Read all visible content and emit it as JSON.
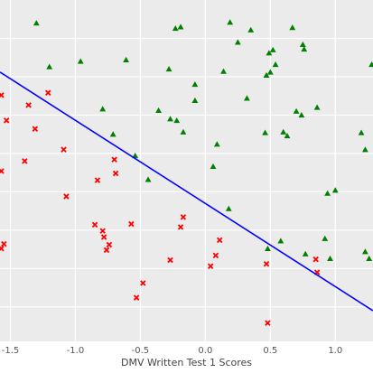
{
  "chart_data": {
    "type": "scatter",
    "title": "",
    "xlabel": "DMV Written Test 1 Scores",
    "ylabel": "",
    "xlim": [
      -1.58,
      1.29
    ],
    "ylim": [
      -2.45,
      2.0
    ],
    "x_ticks": [
      -1.5,
      -1.0,
      -0.5,
      0.0,
      0.5,
      1.0
    ],
    "x_tick_labels": [
      "-1.5",
      "-1.0",
      "-0.5",
      "0.0",
      "0.5",
      "1.0"
    ],
    "y_ticks": [
      -2.0,
      -1.5,
      -1.0,
      -0.5,
      0.0,
      0.5,
      1.0,
      1.5
    ],
    "y_tick_labels": [],
    "grid": true,
    "background_color": "#EBEBEB",
    "legend": "none",
    "series": [
      {
        "marker": "triangle",
        "color": "#008000",
        "points": [
          [
            -1.3,
            1.7
          ],
          [
            -1.2,
            1.13
          ],
          [
            -0.96,
            1.2
          ],
          [
            -0.61,
            1.22
          ],
          [
            -0.28,
            1.1
          ],
          [
            -0.23,
            1.63
          ],
          [
            -0.19,
            1.65
          ],
          [
            0.19,
            1.71
          ],
          [
            0.25,
            1.45
          ],
          [
            0.35,
            1.61
          ],
          [
            0.14,
            1.07
          ],
          [
            0.49,
            1.31
          ],
          [
            0.52,
            1.35
          ],
          [
            0.54,
            1.16
          ],
          [
            0.67,
            1.64
          ],
          [
            0.75,
            1.42
          ],
          [
            0.76,
            1.36
          ],
          [
            1.28,
            1.16
          ],
          [
            0.47,
            1.02
          ],
          [
            0.5,
            1.06
          ],
          [
            -0.08,
            0.9
          ],
          [
            -0.08,
            0.69
          ],
          [
            -0.36,
            0.56
          ],
          [
            -0.27,
            0.45
          ],
          [
            -0.22,
            0.43
          ],
          [
            -0.17,
            0.28
          ],
          [
            0.32,
            0.72
          ],
          [
            0.46,
            0.27
          ],
          [
            0.6,
            0.28
          ],
          [
            0.63,
            0.23
          ],
          [
            0.7,
            0.55
          ],
          [
            0.74,
            0.5
          ],
          [
            0.86,
            0.6
          ],
          [
            1.2,
            0.27
          ],
          [
            1.23,
            0.05
          ],
          [
            -0.79,
            0.58
          ],
          [
            -0.71,
            0.25
          ],
          [
            -0.54,
            -0.03
          ],
          [
            -0.44,
            -0.34
          ],
          [
            0.06,
            -0.17
          ],
          [
            0.09,
            0.12
          ],
          [
            0.18,
            -0.72
          ],
          [
            0.48,
            -1.24
          ],
          [
            0.58,
            -1.14
          ],
          [
            0.94,
            -0.52
          ],
          [
            1.0,
            -0.48
          ],
          [
            0.92,
            -1.11
          ],
          [
            0.96,
            -1.37
          ],
          [
            0.77,
            -1.31
          ],
          [
            1.23,
            -1.28
          ],
          [
            1.26,
            -1.37
          ]
        ]
      },
      {
        "marker": "x",
        "color": "#FF0000",
        "points": [
          [
            -1.57,
            0.76
          ],
          [
            -1.53,
            0.43
          ],
          [
            -1.57,
            -0.23
          ],
          [
            -1.55,
            -1.18
          ],
          [
            -1.36,
            0.63
          ],
          [
            -1.31,
            0.32
          ],
          [
            -1.21,
            0.79
          ],
          [
            -1.39,
            -0.1
          ],
          [
            -1.09,
            0.05
          ],
          [
            -1.07,
            -0.56
          ],
          [
            -0.83,
            -0.35
          ],
          [
            -0.7,
            -0.08
          ],
          [
            -0.69,
            -0.26
          ],
          [
            -0.85,
            -0.93
          ],
          [
            -0.79,
            -1.01
          ],
          [
            -0.78,
            -1.09
          ],
          [
            -0.76,
            -1.26
          ],
          [
            -0.74,
            -1.19
          ],
          [
            -0.57,
            -0.92
          ],
          [
            -0.48,
            -1.69
          ],
          [
            -0.53,
            -1.88
          ],
          [
            -0.27,
            -1.39
          ],
          [
            -0.19,
            -0.96
          ],
          [
            -0.17,
            -0.83
          ],
          [
            0.04,
            -1.47
          ],
          [
            0.08,
            -1.33
          ],
          [
            0.11,
            -1.13
          ],
          [
            0.47,
            -1.44
          ],
          [
            0.48,
            -2.21
          ],
          [
            0.85,
            -1.38
          ],
          [
            0.86,
            -1.55
          ],
          [
            -1.57,
            -1.24
          ]
        ]
      }
    ],
    "decision_boundary": {
      "color": "#0000FF",
      "points": [
        [
          -1.58,
          1.06
        ],
        [
          1.29,
          -2.05
        ]
      ]
    }
  }
}
